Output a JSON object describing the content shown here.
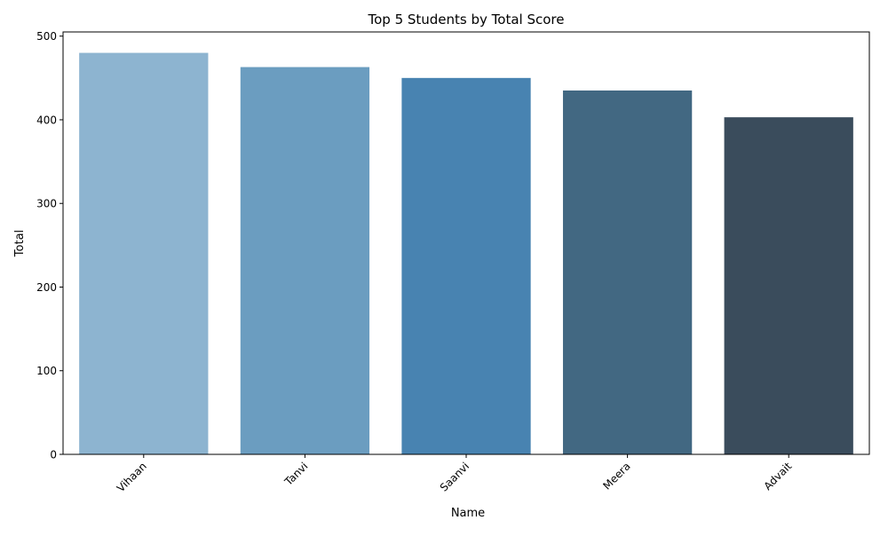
{
  "chart_data": {
    "type": "bar",
    "title": "Top 5 Students by Total Score",
    "xlabel": "Name",
    "ylabel": "Total",
    "categories": [
      "Vihaan",
      "Tanvi",
      "Saanvi",
      "Meera",
      "Advait"
    ],
    "values": [
      480,
      463,
      450,
      435,
      403
    ],
    "ylim": [
      0,
      505
    ],
    "yticks": [
      0,
      100,
      200,
      300,
      400,
      500
    ],
    "xtick_rotation": 45,
    "grid": false,
    "legend": "none",
    "colors": [
      "#8db4d0",
      "#6b9dc0",
      "#4883b1",
      "#426882",
      "#3a4c5c"
    ]
  }
}
